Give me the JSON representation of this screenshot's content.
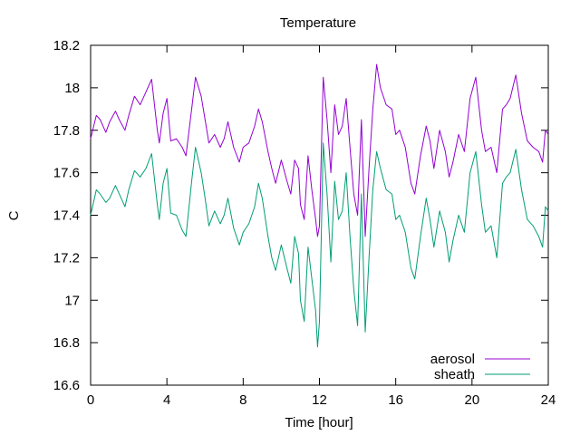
{
  "chart_data": {
    "type": "line",
    "title": "Temperature",
    "xlabel": "Time [hour]",
    "ylabel": "C",
    "xlim": [
      0,
      24
    ],
    "ylim": [
      16.6,
      18.2
    ],
    "xticks": [
      0,
      4,
      8,
      12,
      16,
      20,
      24
    ],
    "xtick_labels": [
      "0",
      "4",
      "8",
      "12",
      "16",
      "20",
      "24"
    ],
    "yticks": [
      16.6,
      16.8,
      17.0,
      17.2,
      17.4,
      17.6,
      17.8,
      18.0,
      18.2
    ],
    "ytick_labels": [
      "16.6",
      "16.8",
      "17",
      "17.2",
      "17.4",
      "17.6",
      "17.8",
      "18",
      "18.2"
    ],
    "grid": false,
    "legend_position": "bottom-right",
    "series": [
      {
        "name": "aerosol",
        "color": "#9400d3",
        "x": [
          0,
          0.3,
          0.5,
          0.8,
          1.0,
          1.3,
          1.5,
          1.8,
          2.0,
          2.3,
          2.6,
          2.9,
          3.2,
          3.5,
          3.6,
          3.8,
          4.0,
          4.2,
          4.5,
          4.8,
          5.0,
          5.3,
          5.5,
          5.8,
          6.0,
          6.2,
          6.5,
          6.8,
          7.0,
          7.2,
          7.5,
          7.8,
          8.0,
          8.3,
          8.6,
          8.8,
          9.0,
          9.3,
          9.5,
          9.7,
          10.0,
          10.3,
          10.5,
          10.7,
          10.9,
          11.0,
          11.2,
          11.4,
          11.6,
          11.8,
          11.9,
          12.0,
          12.2,
          12.4,
          12.6,
          12.8,
          13.0,
          13.2,
          13.4,
          13.6,
          13.8,
          14.0,
          14.2,
          14.4,
          14.6,
          14.8,
          15.0,
          15.2,
          15.5,
          15.8,
          16.0,
          16.2,
          16.5,
          16.8,
          17.0,
          17.3,
          17.6,
          17.8,
          18.0,
          18.3,
          18.6,
          18.8,
          19.0,
          19.3,
          19.6,
          19.9,
          20.2,
          20.5,
          20.7,
          21.0,
          21.3,
          21.6,
          21.8,
          22.0,
          22.3,
          22.6,
          22.9,
          23.2,
          23.5,
          23.7,
          23.85,
          24.0
        ],
        "values": [
          17.76,
          17.87,
          17.85,
          17.79,
          17.84,
          17.89,
          17.85,
          17.8,
          17.87,
          17.96,
          17.92,
          17.98,
          18.04,
          17.8,
          17.74,
          17.88,
          17.95,
          17.75,
          17.76,
          17.72,
          17.68,
          17.9,
          18.05,
          17.96,
          17.85,
          17.74,
          17.78,
          17.72,
          17.76,
          17.84,
          17.72,
          17.65,
          17.72,
          17.74,
          17.82,
          17.9,
          17.84,
          17.7,
          17.62,
          17.55,
          17.66,
          17.56,
          17.5,
          17.66,
          17.62,
          17.45,
          17.38,
          17.68,
          17.52,
          17.38,
          17.3,
          17.35,
          18.05,
          17.85,
          17.6,
          17.92,
          17.78,
          17.82,
          17.95,
          17.72,
          17.5,
          17.4,
          17.85,
          17.3,
          17.62,
          17.9,
          18.11,
          18.0,
          17.92,
          17.9,
          17.78,
          17.8,
          17.72,
          17.55,
          17.5,
          17.68,
          17.82,
          17.75,
          17.62,
          17.8,
          17.7,
          17.58,
          17.65,
          17.78,
          17.7,
          17.95,
          18.05,
          17.8,
          17.7,
          17.72,
          17.6,
          17.9,
          17.92,
          17.95,
          18.06,
          17.88,
          17.75,
          17.72,
          17.7,
          17.65,
          17.8,
          17.78
        ]
      },
      {
        "name": "sheath",
        "color": "#009e73",
        "x": [
          0,
          0.3,
          0.5,
          0.8,
          1.0,
          1.3,
          1.5,
          1.8,
          2.0,
          2.3,
          2.6,
          2.9,
          3.2,
          3.5,
          3.6,
          3.8,
          4.0,
          4.2,
          4.5,
          4.8,
          5.0,
          5.3,
          5.5,
          5.8,
          6.0,
          6.2,
          6.5,
          6.8,
          7.0,
          7.2,
          7.5,
          7.8,
          8.0,
          8.3,
          8.6,
          8.8,
          9.0,
          9.3,
          9.5,
          9.7,
          10.0,
          10.3,
          10.5,
          10.7,
          10.9,
          11.0,
          11.2,
          11.4,
          11.6,
          11.8,
          11.9,
          12.0,
          12.2,
          12.4,
          12.6,
          12.8,
          13.0,
          13.2,
          13.4,
          13.6,
          13.8,
          14.0,
          14.2,
          14.4,
          14.6,
          14.8,
          15.0,
          15.2,
          15.5,
          15.8,
          16.0,
          16.2,
          16.5,
          16.8,
          17.0,
          17.3,
          17.6,
          17.8,
          18.0,
          18.3,
          18.6,
          18.8,
          19.0,
          19.3,
          19.6,
          19.9,
          20.2,
          20.5,
          20.7,
          21.0,
          21.3,
          21.6,
          21.8,
          22.0,
          22.3,
          22.6,
          22.9,
          23.2,
          23.5,
          23.7,
          23.85,
          24.0
        ],
        "values": [
          17.4,
          17.52,
          17.5,
          17.46,
          17.48,
          17.54,
          17.5,
          17.44,
          17.52,
          17.61,
          17.58,
          17.62,
          17.69,
          17.45,
          17.38,
          17.55,
          17.62,
          17.41,
          17.4,
          17.33,
          17.3,
          17.56,
          17.72,
          17.6,
          17.48,
          17.35,
          17.42,
          17.36,
          17.4,
          17.48,
          17.34,
          17.26,
          17.32,
          17.36,
          17.44,
          17.55,
          17.48,
          17.3,
          17.2,
          17.14,
          17.26,
          17.15,
          17.08,
          17.3,
          17.22,
          17.0,
          16.9,
          17.25,
          17.1,
          16.95,
          16.78,
          16.9,
          17.74,
          17.5,
          17.18,
          17.56,
          17.38,
          17.42,
          17.6,
          17.3,
          17.05,
          16.88,
          17.5,
          16.85,
          17.2,
          17.52,
          17.7,
          17.62,
          17.52,
          17.5,
          17.38,
          17.4,
          17.32,
          17.15,
          17.1,
          17.3,
          17.48,
          17.38,
          17.25,
          17.42,
          17.32,
          17.18,
          17.28,
          17.4,
          17.32,
          17.6,
          17.7,
          17.45,
          17.32,
          17.35,
          17.2,
          17.55,
          17.58,
          17.6,
          17.71,
          17.52,
          17.38,
          17.35,
          17.3,
          17.25,
          17.44,
          17.42
        ]
      }
    ]
  }
}
